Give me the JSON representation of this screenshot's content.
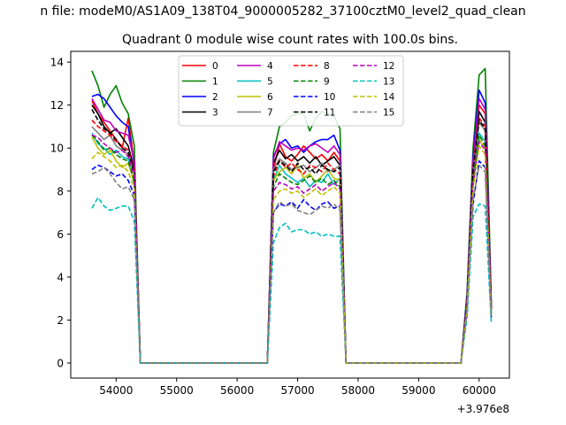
{
  "chart_data": {
    "type": "line",
    "suptitle": "n file: modeM0/AS1A09_138T04_9000005282_37100cztM0_level2_quad_clean",
    "title": "Quadrant 0 module wise count rates with 100.0s bins.",
    "xlabel": "",
    "ylabel": "",
    "x_offset_label": "+3.976e8",
    "xlim": [
      53250,
      60500
    ],
    "ylim": [
      -0.7,
      14.5
    ],
    "xticks": [
      "54000",
      "55000",
      "56000",
      "57000",
      "58000",
      "59000",
      "60000"
    ],
    "yticks": [
      "0",
      "2",
      "4",
      "6",
      "8",
      "10",
      "12",
      "14"
    ],
    "grid": false,
    "legend_position": "upper center",
    "x": [
      53600,
      53700,
      53800,
      53900,
      54000,
      54100,
      54200,
      54300,
      54400,
      54500,
      56400,
      56500,
      56600,
      56700,
      56800,
      56900,
      57000,
      57100,
      57200,
      57300,
      57400,
      57500,
      57600,
      57700,
      57800,
      57900,
      59600,
      59700,
      59800,
      59900,
      60000,
      60100,
      60200
    ],
    "series": [
      {
        "name": "0",
        "color": "#ff0000",
        "style": "solid",
        "values": [
          12.2,
          11.6,
          11.2,
          10.8,
          10.4,
          10.0,
          11.4,
          9.3,
          0.0,
          0.0,
          0.0,
          0.0,
          9.0,
          10.2,
          9.6,
          9.4,
          9.7,
          10.1,
          9.8,
          9.5,
          9.7,
          9.4,
          9.8,
          9.4,
          0.0,
          0.0,
          0.0,
          0.0,
          3.0,
          9.5,
          12.0,
          11.6,
          2.6
        ]
      },
      {
        "name": "1",
        "color": "#008000",
        "style": "solid",
        "values": [
          13.6,
          12.9,
          11.9,
          12.5,
          12.9,
          12.1,
          11.6,
          10.1,
          0.0,
          0.0,
          0.0,
          0.0,
          9.8,
          11.0,
          11.2,
          11.5,
          11.6,
          11.6,
          10.8,
          11.4,
          11.7,
          11.6,
          11.5,
          10.9,
          0.0,
          0.0,
          0.0,
          0.0,
          3.3,
          10.0,
          13.4,
          13.7,
          2.9
        ]
      },
      {
        "name": "2",
        "color": "#0000ff",
        "style": "solid",
        "values": [
          12.4,
          12.5,
          12.3,
          11.9,
          11.5,
          11.2,
          11.0,
          9.2,
          0.0,
          0.0,
          0.0,
          0.0,
          9.6,
          10.2,
          10.4,
          10.0,
          10.1,
          9.8,
          10.1,
          10.3,
          10.4,
          10.4,
          10.6,
          9.9,
          0.0,
          0.0,
          0.0,
          0.0,
          3.1,
          9.6,
          12.7,
          12.1,
          2.8
        ]
      },
      {
        "name": "3",
        "color": "#000000",
        "style": "solid",
        "values": [
          12.0,
          11.6,
          11.0,
          10.7,
          10.9,
          10.5,
          10.1,
          9.0,
          0.0,
          0.0,
          0.0,
          0.0,
          9.3,
          9.9,
          9.5,
          9.7,
          9.4,
          9.6,
          9.3,
          9.6,
          9.2,
          9.4,
          9.6,
          9.2,
          0.0,
          0.0,
          0.0,
          0.0,
          2.9,
          9.2,
          11.7,
          11.2,
          2.6
        ]
      },
      {
        "name": "4",
        "color": "#bf00bf",
        "style": "solid",
        "values": [
          12.3,
          11.8,
          11.3,
          11.2,
          10.8,
          10.7,
          10.6,
          9.4,
          0.0,
          0.0,
          0.0,
          0.0,
          9.5,
          10.3,
          10.1,
          9.9,
          10.0,
          9.9,
          10.1,
          10.2,
          10.0,
          9.8,
          10.1,
          9.7,
          0.0,
          0.0,
          0.0,
          0.0,
          3.0,
          9.4,
          12.3,
          11.8,
          2.7
        ]
      },
      {
        "name": "5",
        "color": "#00bfbf",
        "style": "solid",
        "values": [
          10.7,
          10.2,
          10.0,
          9.7,
          9.9,
          9.6,
          9.5,
          8.3,
          0.0,
          0.0,
          0.0,
          0.0,
          8.5,
          9.2,
          8.8,
          8.6,
          8.4,
          8.6,
          8.2,
          8.5,
          8.4,
          8.8,
          8.3,
          8.6,
          0.0,
          0.0,
          0.0,
          0.0,
          2.6,
          8.5,
          10.7,
          10.3,
          2.3
        ]
      },
      {
        "name": "6",
        "color": "#bfbf00",
        "style": "solid",
        "values": [
          10.5,
          10.0,
          9.7,
          9.9,
          9.4,
          9.1,
          9.3,
          8.4,
          0.0,
          0.0,
          0.0,
          0.0,
          8.5,
          8.9,
          9.1,
          8.8,
          9.2,
          8.6,
          8.8,
          8.4,
          8.7,
          9.0,
          8.6,
          8.5,
          0.0,
          0.0,
          0.0,
          0.0,
          2.6,
          8.3,
          10.4,
          10.0,
          2.3
        ]
      },
      {
        "name": "7",
        "color": "#808080",
        "style": "solid",
        "values": [
          11.0,
          10.7,
          10.4,
          10.6,
          10.1,
          9.9,
          9.7,
          8.8,
          0.0,
          0.0,
          0.0,
          0.0,
          9.0,
          9.5,
          9.3,
          9.0,
          9.1,
          9.2,
          8.9,
          9.1,
          9.3,
          8.9,
          9.0,
          9.2,
          0.0,
          0.0,
          0.0,
          0.0,
          2.8,
          8.9,
          11.2,
          10.8,
          2.5
        ]
      },
      {
        "name": "8",
        "color": "#ff0000",
        "style": "dashed",
        "values": [
          11.3,
          11.0,
          10.8,
          10.6,
          10.3,
          10.1,
          9.9,
          9.0,
          0.0,
          0.0,
          0.0,
          0.0,
          8.7,
          9.4,
          9.1,
          9.3,
          9.0,
          8.8,
          9.2,
          9.1,
          8.9,
          9.3,
          9.0,
          8.8,
          0.0,
          0.0,
          0.0,
          0.0,
          2.8,
          9.1,
          11.4,
          11.0,
          2.5
        ]
      },
      {
        "name": "9",
        "color": "#008000",
        "style": "dashed",
        "values": [
          10.6,
          10.3,
          9.9,
          10.0,
          9.7,
          9.5,
          9.4,
          8.5,
          0.0,
          0.0,
          0.0,
          0.0,
          8.2,
          8.8,
          8.6,
          8.4,
          8.3,
          8.5,
          8.7,
          8.4,
          8.6,
          8.3,
          8.5,
          8.2,
          0.0,
          0.0,
          0.0,
          0.0,
          2.6,
          8.4,
          10.6,
          10.1,
          2.3
        ]
      },
      {
        "name": "10",
        "color": "#0000ff",
        "style": "dashed",
        "values": [
          9.0,
          9.2,
          9.1,
          8.9,
          8.7,
          8.8,
          8.5,
          7.8,
          0.0,
          0.0,
          0.0,
          0.0,
          7.0,
          7.4,
          7.3,
          7.5,
          7.2,
          7.6,
          7.3,
          7.1,
          7.4,
          7.5,
          7.2,
          7.3,
          0.0,
          0.0,
          0.0,
          0.0,
          2.3,
          7.4,
          9.4,
          9.1,
          2.1
        ]
      },
      {
        "name": "11",
        "color": "#000000",
        "style": "dashed",
        "values": [
          11.8,
          11.3,
          10.9,
          10.7,
          10.4,
          10.0,
          9.8,
          8.9,
          0.0,
          0.0,
          0.0,
          0.0,
          8.9,
          9.4,
          9.2,
          8.9,
          9.3,
          9.0,
          9.1,
          8.8,
          9.2,
          9.0,
          8.9,
          9.1,
          0.0,
          0.0,
          0.0,
          0.0,
          2.8,
          9.0,
          11.3,
          10.9,
          2.5
        ]
      },
      {
        "name": "12",
        "color": "#bf00bf",
        "style": "dashed",
        "values": [
          10.6,
          10.5,
          10.2,
          10.0,
          9.8,
          9.9,
          9.6,
          8.7,
          0.0,
          0.0,
          0.0,
          0.0,
          8.0,
          8.4,
          8.3,
          8.1,
          8.2,
          7.9,
          8.1,
          8.3,
          8.0,
          8.2,
          8.4,
          8.1,
          0.0,
          0.0,
          0.0,
          0.0,
          2.6,
          8.3,
          10.3,
          9.9,
          2.3
        ]
      },
      {
        "name": "13",
        "color": "#00bfbf",
        "style": "dashed",
        "values": [
          7.2,
          7.7,
          7.3,
          7.1,
          7.2,
          7.3,
          7.3,
          6.6,
          0.0,
          0.0,
          0.0,
          0.0,
          5.6,
          6.3,
          6.5,
          6.1,
          6.2,
          6.2,
          6.0,
          6.1,
          5.9,
          6.0,
          5.9,
          5.9,
          0.0,
          0.0,
          0.0,
          0.0,
          2.1,
          6.8,
          7.4,
          7.3,
          1.9
        ]
      },
      {
        "name": "14",
        "color": "#bfbf00",
        "style": "dashed",
        "values": [
          9.5,
          9.8,
          9.6,
          9.4,
          9.1,
          9.2,
          8.9,
          8.1,
          0.0,
          0.0,
          0.0,
          0.0,
          7.6,
          8.0,
          8.1,
          7.9,
          8.0,
          7.7,
          7.9,
          8.1,
          7.8,
          8.0,
          8.2,
          7.9,
          0.0,
          0.0,
          0.0,
          0.0,
          2.5,
          8.1,
          10.1,
          9.7,
          2.2
        ]
      },
      {
        "name": "15",
        "color": "#808080",
        "style": "dashed",
        "values": [
          8.8,
          8.9,
          9.1,
          8.8,
          8.4,
          8.1,
          8.2,
          7.6,
          0.0,
          0.0,
          0.0,
          0.0,
          7.0,
          7.5,
          7.3,
          7.4,
          7.1,
          7.0,
          6.9,
          7.1,
          7.3,
          7.2,
          7.4,
          7.1,
          0.0,
          0.0,
          0.0,
          0.0,
          2.4,
          7.6,
          9.2,
          8.9,
          2.2
        ]
      }
    ]
  }
}
